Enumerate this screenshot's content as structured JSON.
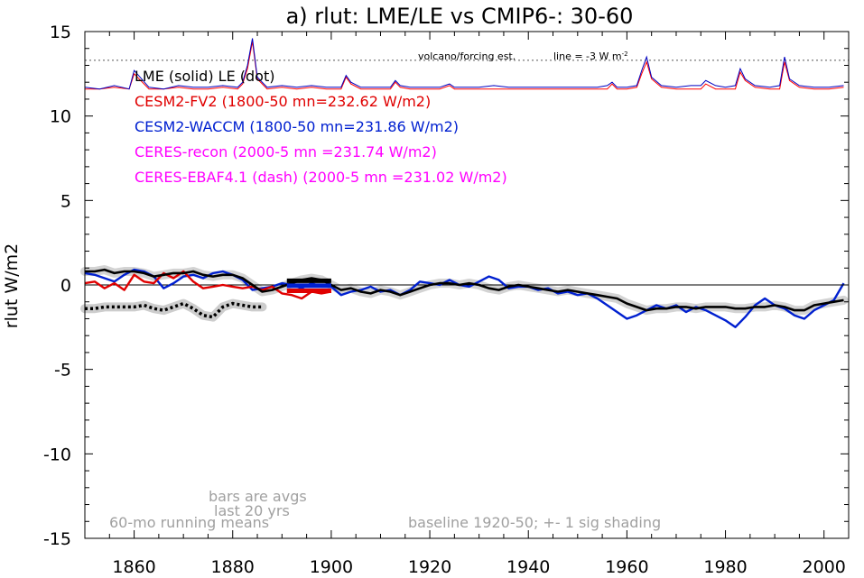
{
  "chart_data": {
    "type": "line",
    "title": "a) rlut: LME/LE vs CMIP6-: 30-60",
    "ylabel": "rlut W/m2",
    "xlim": [
      1850,
      2005
    ],
    "ylim": [
      -15,
      15
    ],
    "xticks": [
      1860,
      1880,
      1900,
      1920,
      1940,
      1960,
      1980,
      2000
    ],
    "yticks": [
      15,
      10,
      5,
      0,
      -5,
      -10,
      -15
    ],
    "xtick_labels": [
      "1860",
      "1880",
      "1900",
      "1920",
      "1940",
      "1960",
      "1980",
      "2000"
    ],
    "ytick_labels": [
      "15",
      "10",
      "5",
      "0",
      "-5",
      "-10",
      "-15"
    ],
    "reference_line_y": 0,
    "volcano_line_y": 13.3,
    "volcano_note": "volcano/forcing est.",
    "volcano_line_note": "line = -3 W m",
    "volcano_line_note_sup": "-2",
    "legend": [
      {
        "label": "LME (solid)   LE (dot)",
        "color": "#000000"
      },
      {
        "label": "CESM2-FV2 (1800-50 mn=232.62 W/m2)",
        "color": "#e00000"
      },
      {
        "label": "CESM2-WACCM (1800-50 mn=231.86 W/m2)",
        "color": "#0020d0"
      },
      {
        "label": "CERES-recon (2000-5 mn =231.74 W/m2)",
        "color": "#ff00ff"
      },
      {
        "label": "CERES-EBAF4.1 (dash) (2000-5 mn =231.02 W/m2)",
        "color": "#ff00ff"
      }
    ],
    "annotations": {
      "bars": "bars are avgs",
      "bars2": "last 20 yrs",
      "running": "60-mo running means",
      "baseline": "baseline 1920-50; +- 1 sig shading"
    },
    "colors": {
      "lme": "#000000",
      "fv2": "#e00000",
      "waccm": "#0020d0",
      "shade": "#c8c8c8",
      "volc_red": "#ff0000",
      "volc_blue": "#0000c0"
    },
    "series": [
      {
        "name": "LME (solid)",
        "x": [
          1850,
          1852,
          1854,
          1856,
          1858,
          1860,
          1862,
          1864,
          1866,
          1868,
          1870,
          1872,
          1874,
          1876,
          1878,
          1880,
          1882,
          1884,
          1886,
          1888,
          1890,
          1892,
          1894,
          1896,
          1898,
          1900,
          1902,
          1904,
          1906,
          1908,
          1910,
          1912,
          1914,
          1916,
          1918,
          1920,
          1922,
          1924,
          1926,
          1928,
          1930,
          1932,
          1934,
          1936,
          1938,
          1940,
          1942,
          1944,
          1946,
          1948,
          1950,
          1952,
          1954,
          1956,
          1958,
          1960,
          1962,
          1964,
          1966,
          1968,
          1970,
          1972,
          1974,
          1976,
          1978,
          1980,
          1982,
          1984,
          1986,
          1988,
          1990,
          1992,
          1994,
          1996,
          1998,
          2000,
          2002,
          2004
        ],
        "values": [
          0.8,
          0.8,
          0.9,
          0.7,
          0.8,
          0.8,
          0.7,
          0.5,
          0.6,
          0.7,
          0.7,
          0.8,
          0.6,
          0.5,
          0.6,
          0.6,
          0.4,
          0.0,
          -0.4,
          -0.3,
          -0.1,
          0.1,
          0.3,
          0.4,
          0.3,
          0.0,
          -0.3,
          -0.2,
          -0.4,
          -0.5,
          -0.3,
          -0.4,
          -0.6,
          -0.4,
          -0.2,
          0.0,
          0.1,
          0.1,
          0.0,
          0.1,
          0.0,
          -0.2,
          -0.3,
          -0.1,
          0.0,
          -0.1,
          -0.2,
          -0.3,
          -0.4,
          -0.3,
          -0.4,
          -0.5,
          -0.6,
          -0.7,
          -0.8,
          -1.1,
          -1.3,
          -1.5,
          -1.4,
          -1.4,
          -1.3,
          -1.3,
          -1.4,
          -1.3,
          -1.3,
          -1.3,
          -1.4,
          -1.4,
          -1.3,
          -1.3,
          -1.2,
          -1.3,
          -1.5,
          -1.5,
          -1.2,
          -1.1,
          -1.0,
          -0.9
        ]
      },
      {
        "name": "LE (dot)",
        "x": [
          1850,
          1852,
          1854,
          1856,
          1858,
          1860,
          1862,
          1864,
          1866,
          1868,
          1870,
          1872,
          1874,
          1876,
          1878,
          1880,
          1882,
          1884,
          1886
        ],
        "values": [
          -1.4,
          -1.4,
          -1.3,
          -1.3,
          -1.3,
          -1.3,
          -1.2,
          -1.4,
          -1.5,
          -1.3,
          -1.1,
          -1.4,
          -1.8,
          -1.9,
          -1.3,
          -1.1,
          -1.2,
          -1.3,
          -1.3
        ]
      },
      {
        "name": "CESM2-FV2 (1800-50 mn=232.62 W/m2)",
        "x": [
          1850,
          1852,
          1854,
          1856,
          1858,
          1860,
          1862,
          1864,
          1866,
          1868,
          1870,
          1872,
          1874,
          1876,
          1878,
          1880,
          1882,
          1884,
          1886,
          1888,
          1890,
          1892,
          1894,
          1896,
          1898,
          1900
        ],
        "values": [
          0.1,
          0.2,
          -0.2,
          0.1,
          -0.3,
          0.6,
          0.2,
          0.1,
          0.7,
          0.4,
          0.8,
          0.2,
          -0.2,
          -0.1,
          0.0,
          -0.1,
          -0.2,
          -0.1,
          -0.3,
          -0.1,
          -0.5,
          -0.6,
          -0.8,
          -0.4,
          -0.5,
          -0.4
        ]
      },
      {
        "name": "CESM2-WACCM (1800-50 mn=231.86 W/m2)",
        "x": [
          1850,
          1852,
          1854,
          1856,
          1858,
          1860,
          1862,
          1864,
          1866,
          1868,
          1870,
          1872,
          1874,
          1876,
          1878,
          1880,
          1882,
          1884,
          1886,
          1888,
          1890,
          1892,
          1894,
          1896,
          1898,
          1900,
          1902,
          1904,
          1906,
          1908,
          1910,
          1912,
          1914,
          1916,
          1918,
          1920,
          1922,
          1924,
          1926,
          1928,
          1930,
          1932,
          1934,
          1936,
          1938,
          1940,
          1942,
          1944,
          1946,
          1948,
          1950,
          1952,
          1954,
          1956,
          1958,
          1960,
          1962,
          1964,
          1966,
          1968,
          1970,
          1972,
          1974,
          1976,
          1978,
          1980,
          1982,
          1984,
          1986,
          1988,
          1990,
          1992,
          1994,
          1996,
          1998,
          2000,
          2002,
          2004
        ],
        "values": [
          0.7,
          0.6,
          0.4,
          0.2,
          0.6,
          0.9,
          0.8,
          0.5,
          -0.2,
          0.1,
          0.5,
          0.6,
          0.4,
          0.7,
          0.8,
          0.6,
          0.3,
          -0.3,
          -0.2,
          -0.1,
          0.1,
          0.0,
          -0.2,
          0.1,
          -0.1,
          -0.1,
          -0.6,
          -0.4,
          -0.3,
          -0.1,
          -0.4,
          -0.3,
          -0.6,
          -0.3,
          0.2,
          0.1,
          0.0,
          0.3,
          0.0,
          -0.1,
          0.2,
          0.5,
          0.3,
          -0.2,
          -0.1,
          -0.1,
          -0.3,
          -0.2,
          -0.5,
          -0.4,
          -0.6,
          -0.5,
          -0.8,
          -1.2,
          -1.6,
          -2.0,
          -1.8,
          -1.5,
          -1.2,
          -1.4,
          -1.2,
          -1.6,
          -1.3,
          -1.5,
          -1.8,
          -2.1,
          -2.5,
          -1.9,
          -1.2,
          -0.8,
          -1.2,
          -1.4,
          -1.8,
          -2.0,
          -1.5,
          -1.2,
          -0.9,
          0.1
        ]
      }
    ],
    "volcano_series": [
      {
        "name": "volc_red",
        "x": [
          1850,
          1853,
          1856,
          1859,
          1860,
          1863,
          1866,
          1869,
          1872,
          1875,
          1878,
          1881,
          1882,
          1883,
          1884,
          1885,
          1887,
          1890,
          1893,
          1896,
          1899,
          1902,
          1903,
          1904,
          1906,
          1909,
          1912,
          1913,
          1914,
          1916,
          1919,
          1922,
          1924,
          1925,
          1927,
          1930,
          1933,
          1936,
          1939,
          1942,
          1945,
          1948,
          1951,
          1954,
          1956,
          1957,
          1958,
          1960,
          1962,
          1963,
          1964,
          1965,
          1967,
          1970,
          1973,
          1975,
          1976,
          1978,
          1980,
          1982,
          1983,
          1984,
          1986,
          1989,
          1991,
          1992,
          1993,
          1995,
          1998,
          2001,
          2004
        ],
        "values": [
          11.6,
          11.6,
          11.7,
          11.6,
          12.5,
          11.6,
          11.6,
          11.7,
          11.6,
          11.6,
          11.7,
          11.6,
          11.9,
          12.8,
          14.4,
          12.2,
          11.6,
          11.7,
          11.6,
          11.7,
          11.6,
          11.6,
          12.3,
          11.9,
          11.6,
          11.6,
          11.6,
          12.0,
          11.7,
          11.6,
          11.6,
          11.6,
          11.8,
          11.6,
          11.6,
          11.6,
          11.6,
          11.6,
          11.6,
          11.6,
          11.6,
          11.6,
          11.6,
          11.6,
          11.6,
          11.9,
          11.6,
          11.6,
          11.7,
          12.5,
          13.2,
          12.2,
          11.7,
          11.6,
          11.6,
          11.6,
          11.9,
          11.6,
          11.6,
          11.6,
          12.6,
          12.1,
          11.7,
          11.6,
          11.6,
          13.2,
          12.1,
          11.7,
          11.6,
          11.6,
          11.7
        ]
      },
      {
        "name": "volc_blue",
        "x": [
          1850,
          1853,
          1856,
          1859,
          1860,
          1863,
          1866,
          1869,
          1872,
          1875,
          1878,
          1881,
          1882,
          1883,
          1884,
          1885,
          1887,
          1890,
          1893,
          1896,
          1899,
          1902,
          1903,
          1904,
          1906,
          1909,
          1912,
          1913,
          1914,
          1916,
          1919,
          1922,
          1924,
          1925,
          1927,
          1930,
          1933,
          1936,
          1939,
          1942,
          1945,
          1948,
          1951,
          1954,
          1956,
          1957,
          1958,
          1960,
          1962,
          1963,
          1964,
          1965,
          1967,
          1970,
          1973,
          1975,
          1976,
          1978,
          1980,
          1982,
          1983,
          1984,
          1986,
          1989,
          1991,
          1992,
          1993,
          1995,
          1998,
          2001,
          2004
        ],
        "values": [
          11.7,
          11.6,
          11.8,
          11.6,
          12.7,
          11.7,
          11.6,
          11.8,
          11.7,
          11.7,
          11.8,
          11.7,
          12.0,
          13.0,
          14.6,
          12.3,
          11.7,
          11.8,
          11.7,
          11.8,
          11.7,
          11.7,
          12.4,
          12.0,
          11.7,
          11.7,
          11.7,
          12.1,
          11.8,
          11.7,
          11.7,
          11.7,
          11.9,
          11.7,
          11.7,
          11.7,
          11.8,
          11.7,
          11.7,
          11.7,
          11.7,
          11.7,
          11.7,
          11.7,
          11.8,
          12.0,
          11.7,
          11.7,
          11.8,
          12.7,
          13.5,
          12.3,
          11.8,
          11.7,
          11.8,
          11.8,
          12.1,
          11.8,
          11.7,
          11.8,
          12.8,
          12.2,
          11.8,
          11.7,
          11.8,
          13.5,
          12.2,
          11.8,
          11.7,
          11.7,
          11.8
        ]
      }
    ],
    "bars": [
      {
        "name": "LME avg",
        "x": [
          1891,
          1900
        ],
        "y": 0.25,
        "color": "#000000"
      },
      {
        "name": "WACCM avg",
        "x": [
          1891,
          1900
        ],
        "y": -0.05,
        "color": "#0020d0"
      },
      {
        "name": "FV2 avg",
        "x": [
          1891,
          1900
        ],
        "y": -0.35,
        "color": "#e00000"
      }
    ]
  }
}
